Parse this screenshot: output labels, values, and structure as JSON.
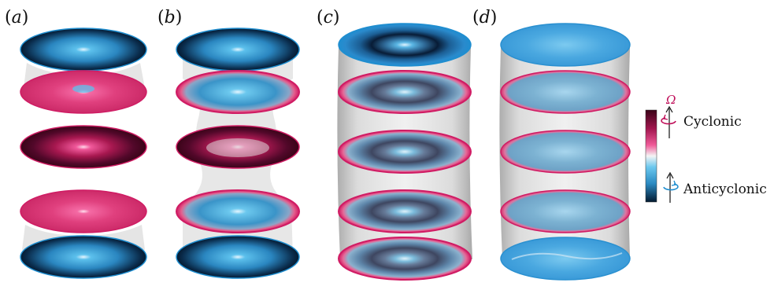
{
  "panels": [
    {
      "label_open": "(",
      "label_letter": "a",
      "label_close": ")"
    },
    {
      "label_open": "(",
      "label_letter": "b",
      "label_close": ")"
    },
    {
      "label_open": "(",
      "label_letter": "c",
      "label_close": ")"
    },
    {
      "label_open": "(",
      "label_letter": "d",
      "label_close": ")"
    }
  ],
  "legend": {
    "omega_symbol": "Ω",
    "cyclonic_label": "Cyclonic",
    "anticyclonic_label": "Anticyclonic",
    "colormap": {
      "cyclonic_dark": "#3a0418",
      "cyclonic_mid": "#c01a5c",
      "cyclonic_light": "#f05a98",
      "neutral": "#f2f2f2",
      "anticyclonic_light": "#6cc8ee",
      "anticyclonic_mid": "#2a8ac2",
      "anticyclonic_dark": "#041a30"
    }
  },
  "colors": {
    "rim_cyclonic": "#d01c64",
    "rim_anticyclonic": "#1f8ed0",
    "iso_surface": "#bdbdbd"
  },
  "icons": {
    "cyclonic": "counterclockwise-rotation-arrow-icon",
    "anticyclonic": "clockwise-rotation-arrow-icon"
  }
}
